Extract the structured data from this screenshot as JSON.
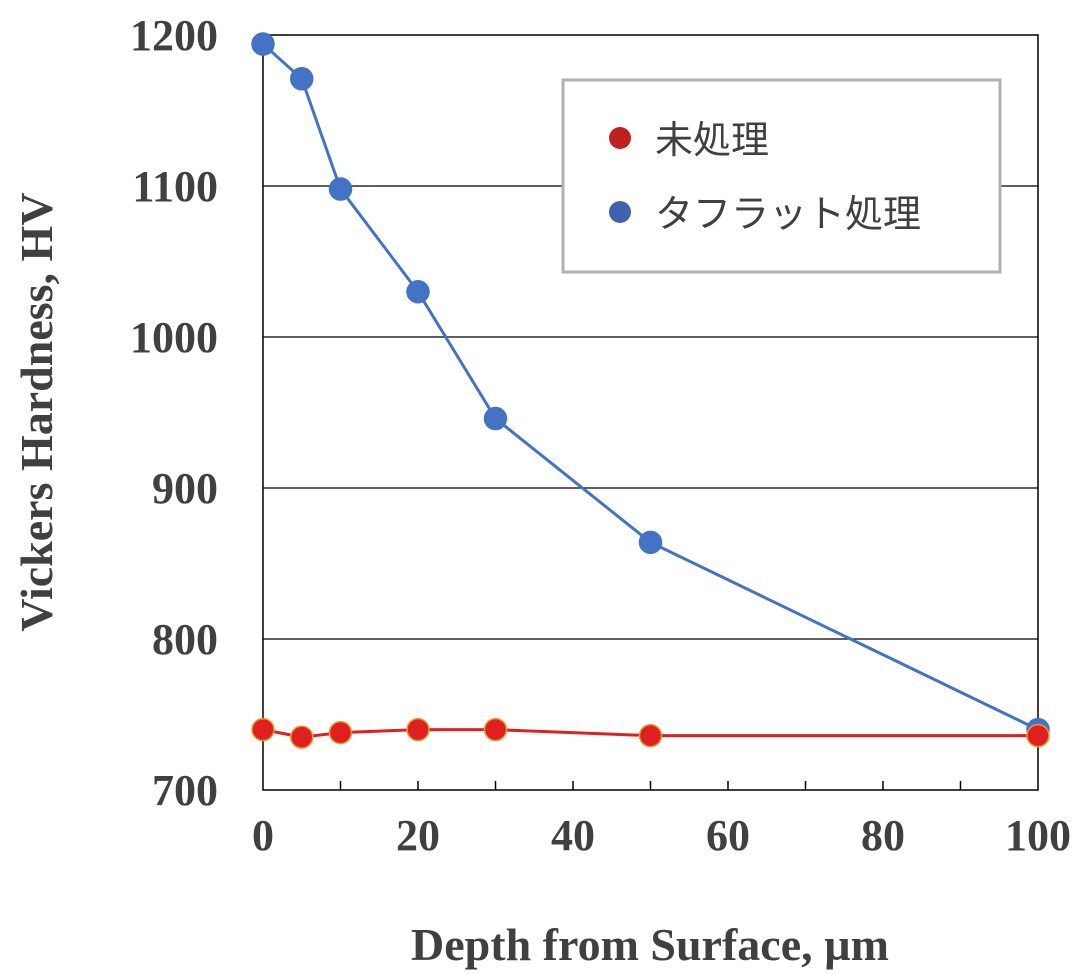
{
  "chart_data": {
    "type": "line",
    "xlabel": "Depth from Surface, µm",
    "ylabel": "Vickers Hardness, HV",
    "xlim": [
      0,
      100
    ],
    "ylim": [
      700,
      1200
    ],
    "x_ticks": [
      "0",
      "20",
      "40",
      "60",
      "80",
      "100"
    ],
    "y_ticks": [
      "700",
      "800",
      "900",
      "1000",
      "1100",
      "1200"
    ],
    "grid": "horizontal",
    "legend_position": "top-right",
    "series": [
      {
        "name": "未処理",
        "color": "#e02020",
        "marker_edge": "#e0a030",
        "x": [
          0,
          5,
          10,
          20,
          30,
          50,
          100
        ],
        "y": [
          740,
          735,
          738,
          740,
          740,
          736,
          736
        ]
      },
      {
        "name": "タフラット処理",
        "color": "#4472c4",
        "marker_edge": "#4472c4",
        "x": [
          0,
          5,
          10,
          20,
          30,
          50,
          100
        ],
        "y": [
          1194,
          1171,
          1098,
          1030,
          946,
          864,
          740
        ]
      }
    ],
    "legend_marker_colors": [
      "#c02020",
      "#4060b0"
    ]
  }
}
